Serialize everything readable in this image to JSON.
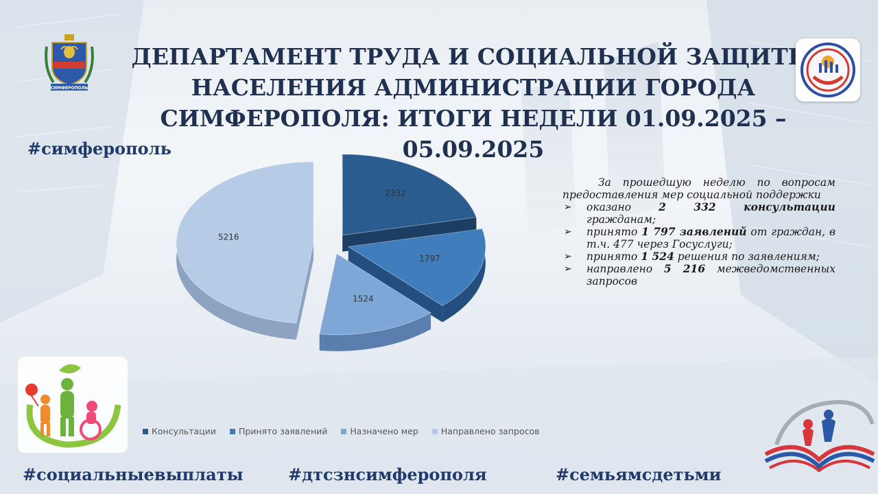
{
  "title": {
    "line1": "ДЕПАРТАМЕНТ ТРУДА И СОЦИАЛЬНОЙ ЗАЩИТЫ",
    "line2": "НАСЕЛЕНИЯ АДМИНИСТРАЦИИ ГОРОДА",
    "line3": "СИМФЕРОПОЛЯ: ИТОГИ НЕДЕЛИ 01.09.2025 – 05.09.2025"
  },
  "hashtags": {
    "top": "#симферополь",
    "bottom_left": "#социальныевыплаты",
    "bottom_center": "#дтсзнсимферополя",
    "bottom_right": "#семьямсдетьми"
  },
  "crest_label": "СИМФЕРОПОЛЬ",
  "chart_data": {
    "type": "pie",
    "categories": [
      "Консультации",
      "Принято заявлений",
      "Назначено мер",
      "Направлено запросов"
    ],
    "values": [
      2332,
      1797,
      1524,
      5216
    ],
    "data_labels": [
      "2332",
      "1797",
      "1524",
      "5216"
    ],
    "legend_position": "bottom",
    "colors": [
      "#2b5c8f",
      "#3f7dbd",
      "#7ea6d6",
      "#b6cbe6"
    ]
  },
  "summary": {
    "intro": "За прошедшую неделю по вопросам предоставления мер социальной поддержки",
    "items": [
      {
        "pre": "оказано ",
        "bold": "2 332 консультации",
        "post": " гражданам;"
      },
      {
        "pre": "принято ",
        "bold": "1 797 заявлений",
        "post": " от граждан, в т.ч. 477 через Госуслуги;"
      },
      {
        "pre": "принято ",
        "bold": "1 524",
        "post": " решения по заявлениям;"
      },
      {
        "pre": "направлено ",
        "bold": "5 216",
        "post": " межведомственных запросов"
      }
    ]
  }
}
